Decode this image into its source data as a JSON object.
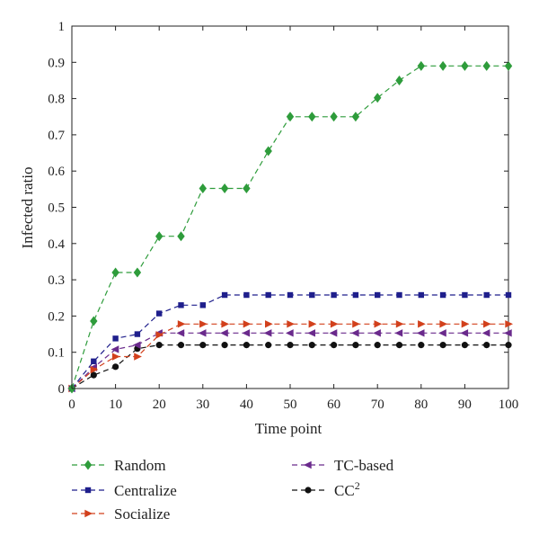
{
  "chart_data": {
    "type": "line",
    "title": "",
    "xlabel": "Time point",
    "ylabel": "Infected ratio",
    "xlim": [
      0,
      100
    ],
    "ylim": [
      0,
      1
    ],
    "xticks": [
      0,
      10,
      20,
      30,
      40,
      50,
      60,
      70,
      80,
      90,
      100
    ],
    "yticks": [
      0,
      0.1,
      0.2,
      0.3,
      0.4,
      0.5,
      0.6,
      0.7,
      0.8,
      0.9,
      1
    ],
    "ytick_labels": [
      "0",
      "0.1",
      "0.2",
      "0.3",
      "0.4",
      "0.5",
      "0.6",
      "0.7",
      "0.8",
      "0.9",
      "1"
    ],
    "grid": false,
    "legend_position": "below",
    "x": [
      0,
      5,
      10,
      15,
      20,
      25,
      30,
      35,
      40,
      45,
      50,
      55,
      60,
      65,
      70,
      75,
      80,
      85,
      90,
      95,
      100
    ],
    "series": [
      {
        "key": "random",
        "name": "Random",
        "color": "#2e9c3b",
        "marker": "diamond",
        "values": [
          0,
          0.186,
          0.32,
          0.32,
          0.42,
          0.42,
          0.552,
          0.552,
          0.552,
          0.655,
          0.75,
          0.75,
          0.75,
          0.75,
          0.802,
          0.85,
          0.89,
          0.89,
          0.89,
          0.89,
          0.89
        ]
      },
      {
        "key": "centralize",
        "name": "Centralize",
        "color": "#1f1f8c",
        "marker": "square",
        "values": [
          0,
          0.075,
          0.138,
          0.15,
          0.207,
          0.23,
          0.23,
          0.258,
          0.258,
          0.258,
          0.258,
          0.258,
          0.258,
          0.258,
          0.258,
          0.258,
          0.258,
          0.258,
          0.258,
          0.258,
          0.258
        ]
      },
      {
        "key": "socialize",
        "name": "Socialize",
        "color": "#d2401c",
        "marker": "triangle-right",
        "values": [
          0,
          0.052,
          0.088,
          0.088,
          0.148,
          0.178,
          0.178,
          0.178,
          0.178,
          0.178,
          0.178,
          0.178,
          0.178,
          0.178,
          0.178,
          0.178,
          0.178,
          0.178,
          0.178,
          0.178,
          0.178
        ]
      },
      {
        "key": "tcbased",
        "name": "TC-based",
        "color": "#6a2a8c",
        "marker": "triangle-left",
        "values": [
          0,
          0.058,
          0.108,
          0.12,
          0.153,
          0.153,
          0.153,
          0.153,
          0.153,
          0.153,
          0.153,
          0.153,
          0.153,
          0.153,
          0.153,
          0.153,
          0.153,
          0.153,
          0.153,
          0.153,
          0.153
        ]
      },
      {
        "key": "cc2",
        "name": "CC",
        "name_sup": "2",
        "color": "#111111",
        "marker": "circle",
        "values": [
          0,
          0.037,
          0.06,
          0.11,
          0.12,
          0.12,
          0.12,
          0.12,
          0.12,
          0.12,
          0.12,
          0.12,
          0.12,
          0.12,
          0.12,
          0.12,
          0.12,
          0.12,
          0.12,
          0.12,
          0.12
        ]
      }
    ]
  }
}
